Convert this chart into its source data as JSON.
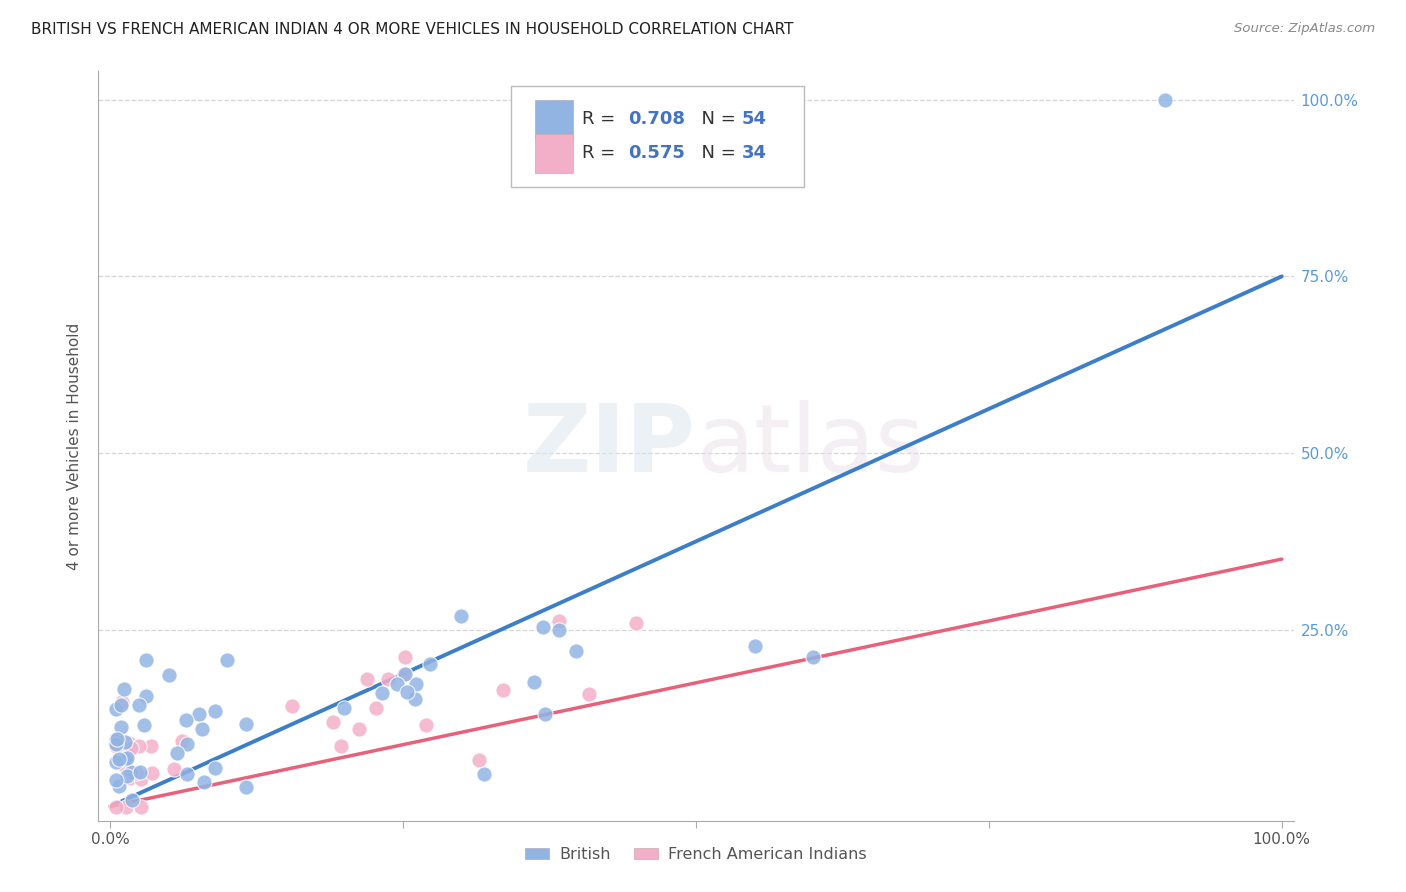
{
  "title": "BRITISH VS FRENCH AMERICAN INDIAN 4 OR MORE VEHICLES IN HOUSEHOLD CORRELATION CHART",
  "source": "Source: ZipAtlas.com",
  "ylabel": "4 or more Vehicles in Household",
  "xticklabels": [
    "0.0%",
    "",
    "",
    "",
    "100.0%"
  ],
  "right_yticklabels": [
    "",
    "25.0%",
    "50.0%",
    "75.0%",
    "100.0%"
  ],
  "watermark_text": "ZIPatlas",
  "british_color": "#92b4e3",
  "french_color": "#f4afc8",
  "british_line_color": "#3d7ec8",
  "french_line_color": "#e8607a",
  "legend_R1": "0.708",
  "legend_N1": "54",
  "legend_R2": "0.575",
  "legend_N2": "34",
  "british_label": "British",
  "french_label": "French American Indians",
  "british_R": 0.708,
  "british_N": 54,
  "french_R": 0.575,
  "french_N": 34,
  "grid_color": "#cccccc",
  "background_color": "#ffffff",
  "title_fontsize": 11,
  "axis_label_fontsize": 11,
  "tick_fontsize": 11,
  "right_tick_color": "#5b9bd5",
  "text_color": "#555555",
  "blue_text_color": "#4472c4"
}
